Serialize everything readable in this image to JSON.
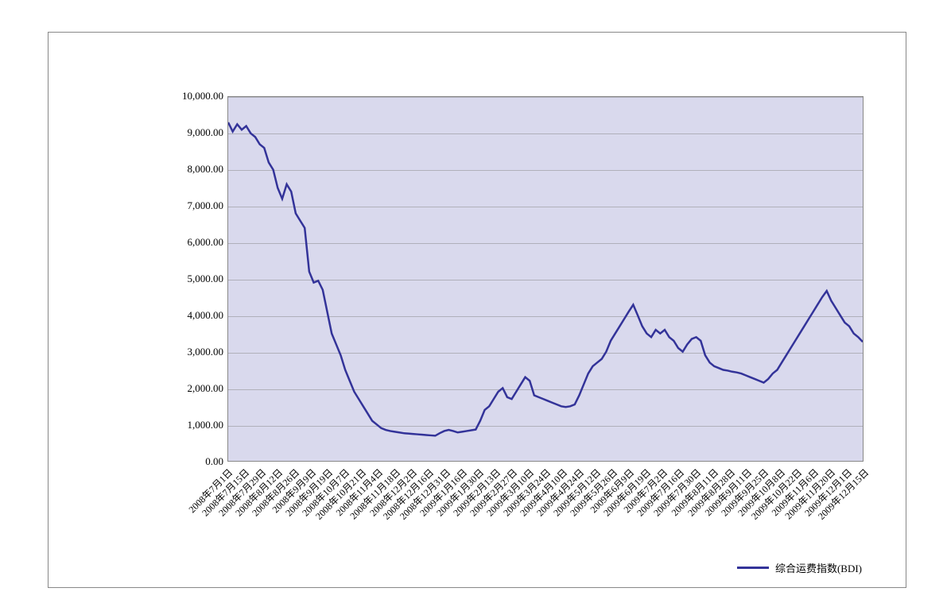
{
  "chart": {
    "type": "line",
    "background_color": "#ffffff",
    "plot_background_color": "#d9d9ed",
    "border_color": "#888888",
    "grid_color": "#888888",
    "text_color": "#000000",
    "label_fontsize": 13,
    "xlabel_fontsize": 12,
    "line_color": "#333399",
    "line_width": 2.5,
    "ylim": [
      0,
      10000
    ],
    "ytick_step": 1000,
    "ytick_labels": [
      "0.00",
      "1,000.00",
      "2,000.00",
      "3,000.00",
      "4,000.00",
      "5,000.00",
      "6,000.00",
      "7,000.00",
      "8,000.00",
      "9,000.00",
      "10,000.00"
    ],
    "xtick_labels": [
      "2008年7月1日",
      "2008年7月15日",
      "2008年7月29日",
      "2008年8月12日",
      "2008年8月26日",
      "2008年9月9日",
      "2008年9月19日",
      "2008年10月7日",
      "2008年10月21日",
      "2008年11月4日",
      "2008年11月18日",
      "2008年12月2日",
      "2008年12月16日",
      "2008年12月31日",
      "2009年1月16日",
      "2009年1月30日",
      "2009年2月13日",
      "2009年2月27日",
      "2009年3月10日",
      "2009年3月24日",
      "2009年4月10日",
      "2009年4月24日",
      "2009年5月12日",
      "2009年5月26日",
      "2009年6月9日",
      "2009年6月19日",
      "2009年7月2日",
      "2009年7月16日",
      "2009年7月30日",
      "2009年8月11日",
      "2009年8月28日",
      "2009年9月11日",
      "2009年9月25日",
      "2009年10月8日",
      "2009年10月22日",
      "2009年11月6日",
      "2009年11月20日",
      "2009年12月1日",
      "2009年12月15日"
    ],
    "legend_label": "综合运费指数(BDI)",
    "series": {
      "name": "BDI",
      "values": [
        9300,
        9050,
        9250,
        9100,
        9200,
        9000,
        8900,
        8700,
        8600,
        8200,
        8000,
        7500,
        7200,
        7600,
        7400,
        6800,
        6600,
        6400,
        5200,
        4900,
        4950,
        4700,
        4100,
        3500,
        3200,
        2900,
        2500,
        2200,
        1900,
        1700,
        1500,
        1300,
        1100,
        1000,
        900,
        850,
        820,
        800,
        780,
        760,
        750,
        740,
        730,
        720,
        710,
        700,
        690,
        760,
        820,
        850,
        820,
        780,
        800,
        820,
        840,
        860,
        1100,
        1400,
        1500,
        1700,
        1900,
        2000,
        1750,
        1700,
        1900,
        2100,
        2300,
        2200,
        1800,
        1750,
        1700,
        1650,
        1600,
        1550,
        1500,
        1480,
        1500,
        1550,
        1800,
        2100,
        2400,
        2600,
        2700,
        2800,
        3000,
        3300,
        3500,
        3700,
        3900,
        4100,
        4290,
        4000,
        3700,
        3500,
        3400,
        3600,
        3500,
        3600,
        3400,
        3300,
        3100,
        3000,
        3200,
        3350,
        3400,
        3300,
        2900,
        2700,
        2600,
        2550,
        2500,
        2480,
        2450,
        2430,
        2400,
        2350,
        2300,
        2250,
        2200,
        2150,
        2250,
        2400,
        2500,
        2700,
        2900,
        3100,
        3300,
        3500,
        3700,
        3900,
        4100,
        4300,
        4500,
        4670,
        4400,
        4200,
        4000,
        3800,
        3700,
        3500,
        3400,
        3270
      ]
    }
  }
}
